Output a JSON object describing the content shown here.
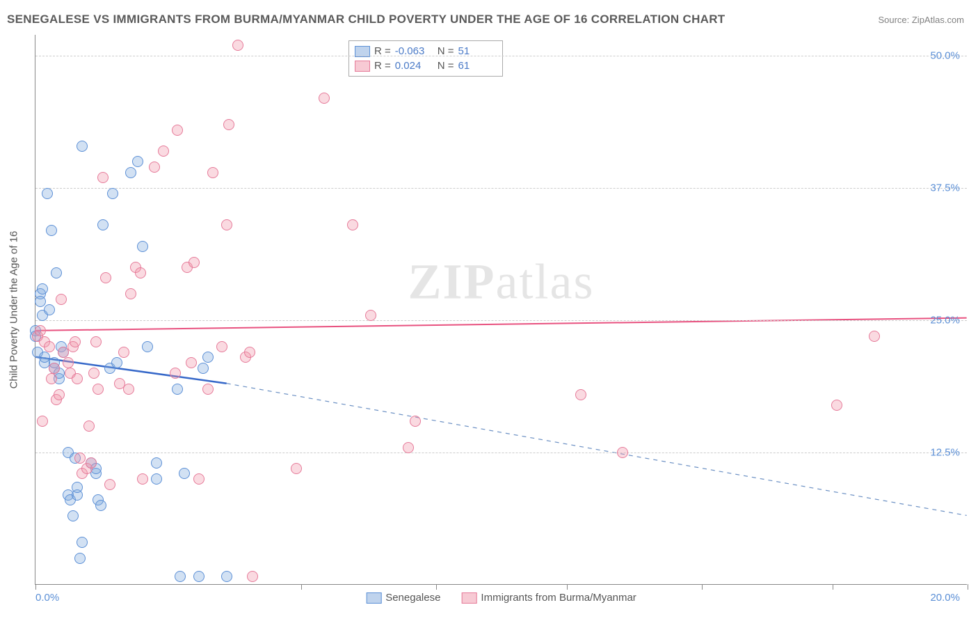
{
  "header": {
    "title": "SENEGALESE VS IMMIGRANTS FROM BURMA/MYANMAR CHILD POVERTY UNDER THE AGE OF 16 CORRELATION CHART",
    "source": "Source: ZipAtlas.com"
  },
  "chart": {
    "type": "scatter",
    "ylabel": "Child Poverty Under the Age of 16",
    "watermark_zip": "ZIP",
    "watermark_atlas": "atlas",
    "xlim": [
      0,
      20
    ],
    "ylim": [
      0,
      52
    ],
    "xtick_positions": [
      0,
      5.7,
      8.6,
      11.4,
      14.3,
      17.1,
      20
    ],
    "xtick_label_left": "0.0%",
    "xtick_label_right": "20.0%",
    "yticks": [
      {
        "pos": 50.0,
        "label": "50.0%"
      },
      {
        "pos": 37.5,
        "label": "37.5%"
      },
      {
        "pos": 25.0,
        "label": "25.0%"
      },
      {
        "pos": 12.5,
        "label": "12.5%"
      }
    ],
    "grid_color": "#cccccc",
    "background_color": "#ffffff",
    "marker_size": 16,
    "series": [
      {
        "name": "Senegalese",
        "color_fill": "rgba(127,168,220,0.35)",
        "color_stroke": "#5b8fd6",
        "r_label": "R =",
        "r_value": "-0.063",
        "n_label": "N =",
        "n_value": "51",
        "trend_solid": {
          "x1": 0,
          "y1": 21.5,
          "x2": 4.1,
          "y2": 19.0,
          "stroke": "#3668c9",
          "width": 2.5
        },
        "trend_dashed": {
          "x1": 4.1,
          "y1": 19.0,
          "x2": 20,
          "y2": 6.5,
          "stroke": "#6a8fc3",
          "width": 1.2,
          "dash": "6,6"
        },
        "points": [
          [
            0.0,
            24.0
          ],
          [
            0.0,
            23.5
          ],
          [
            0.05,
            22.0
          ],
          [
            0.1,
            27.5
          ],
          [
            0.1,
            26.8
          ],
          [
            0.15,
            25.5
          ],
          [
            0.15,
            28.0
          ],
          [
            0.2,
            21.0
          ],
          [
            0.2,
            21.5
          ],
          [
            0.25,
            37.0
          ],
          [
            0.3,
            26.0
          ],
          [
            0.35,
            33.5
          ],
          [
            0.4,
            20.5
          ],
          [
            0.4,
            21.0
          ],
          [
            0.45,
            29.5
          ],
          [
            0.5,
            19.5
          ],
          [
            0.5,
            20.0
          ],
          [
            0.55,
            22.5
          ],
          [
            0.6,
            22.0
          ],
          [
            0.7,
            12.5
          ],
          [
            0.7,
            8.5
          ],
          [
            0.75,
            8.0
          ],
          [
            0.8,
            6.5
          ],
          [
            0.85,
            12.0
          ],
          [
            0.9,
            8.5
          ],
          [
            0.9,
            9.2
          ],
          [
            0.95,
            2.5
          ],
          [
            1.0,
            4.0
          ],
          [
            1.0,
            41.5
          ],
          [
            1.2,
            11.5
          ],
          [
            1.3,
            10.5
          ],
          [
            1.3,
            11.0
          ],
          [
            1.35,
            8.0
          ],
          [
            1.4,
            7.5
          ],
          [
            1.45,
            34.0
          ],
          [
            1.6,
            20.5
          ],
          [
            1.65,
            37.0
          ],
          [
            1.75,
            21.0
          ],
          [
            2.05,
            39.0
          ],
          [
            2.2,
            40.0
          ],
          [
            2.3,
            32.0
          ],
          [
            2.4,
            22.5
          ],
          [
            2.6,
            11.5
          ],
          [
            2.6,
            10.0
          ],
          [
            3.05,
            18.5
          ],
          [
            3.1,
            0.8
          ],
          [
            3.2,
            10.5
          ],
          [
            3.5,
            0.8
          ],
          [
            3.6,
            20.5
          ],
          [
            3.7,
            21.5
          ],
          [
            4.1,
            0.8
          ]
        ]
      },
      {
        "name": "Immigrants from Burma/Myanmar",
        "color_fill": "rgba(240,150,170,0.35)",
        "color_stroke": "#e67a99",
        "r_label": "R =",
        "r_value": "0.024",
        "n_label": "N =",
        "n_value": "61",
        "trend_solid": {
          "x1": 0,
          "y1": 24.0,
          "x2": 20,
          "y2": 25.2,
          "stroke": "#e8517f",
          "width": 2
        },
        "trend_dashed": null,
        "points": [
          [
            0.05,
            23.5
          ],
          [
            0.1,
            24.0
          ],
          [
            0.15,
            15.5
          ],
          [
            0.2,
            23.0
          ],
          [
            0.3,
            22.5
          ],
          [
            0.35,
            19.5
          ],
          [
            0.4,
            20.5
          ],
          [
            0.45,
            17.5
          ],
          [
            0.5,
            18.0
          ],
          [
            0.55,
            27.0
          ],
          [
            0.6,
            22.0
          ],
          [
            0.7,
            21.0
          ],
          [
            0.75,
            20.0
          ],
          [
            0.8,
            22.5
          ],
          [
            0.85,
            23.0
          ],
          [
            0.9,
            19.5
          ],
          [
            0.95,
            12.0
          ],
          [
            1.0,
            10.5
          ],
          [
            1.1,
            11.0
          ],
          [
            1.15,
            15.0
          ],
          [
            1.2,
            11.5
          ],
          [
            1.25,
            20.0
          ],
          [
            1.3,
            23.0
          ],
          [
            1.35,
            18.5
          ],
          [
            1.45,
            38.5
          ],
          [
            1.5,
            29.0
          ],
          [
            1.6,
            9.5
          ],
          [
            1.8,
            19.0
          ],
          [
            1.9,
            22.0
          ],
          [
            2.0,
            18.5
          ],
          [
            2.05,
            27.5
          ],
          [
            2.15,
            30.0
          ],
          [
            2.25,
            29.5
          ],
          [
            2.3,
            10.0
          ],
          [
            2.55,
            39.5
          ],
          [
            2.75,
            41.0
          ],
          [
            3.0,
            20.0
          ],
          [
            3.05,
            43.0
          ],
          [
            3.25,
            30.0
          ],
          [
            3.35,
            21.0
          ],
          [
            3.4,
            30.5
          ],
          [
            3.5,
            10.0
          ],
          [
            3.7,
            18.5
          ],
          [
            3.8,
            39.0
          ],
          [
            4.0,
            22.5
          ],
          [
            4.1,
            34.0
          ],
          [
            4.15,
            43.5
          ],
          [
            4.35,
            51.0
          ],
          [
            4.5,
            21.5
          ],
          [
            4.6,
            22.0
          ],
          [
            4.65,
            0.8
          ],
          [
            5.6,
            11.0
          ],
          [
            6.2,
            46.0
          ],
          [
            6.8,
            34.0
          ],
          [
            7.2,
            25.5
          ],
          [
            8.0,
            13.0
          ],
          [
            8.15,
            15.5
          ],
          [
            11.7,
            18.0
          ],
          [
            12.6,
            12.5
          ],
          [
            17.2,
            17.0
          ],
          [
            18.0,
            23.5
          ]
        ]
      }
    ],
    "bottom_legend": [
      {
        "swatch": "blue",
        "label": "Senegalese"
      },
      {
        "swatch": "pink",
        "label": "Immigrants from Burma/Myanmar"
      }
    ]
  }
}
